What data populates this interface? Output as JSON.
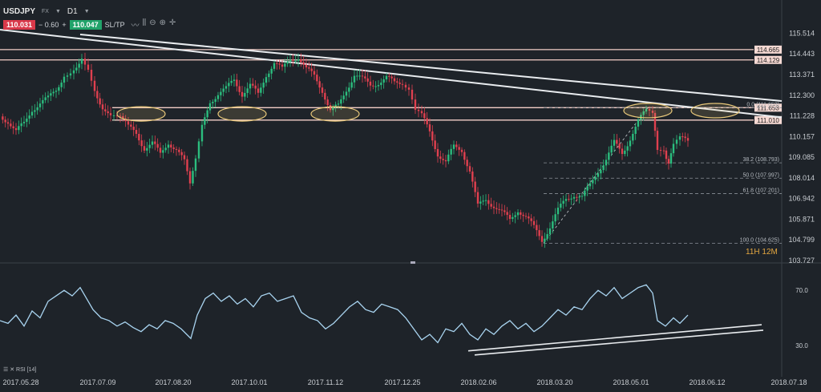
{
  "header": {
    "symbol": "USDJPY",
    "market": "FX",
    "timeframe": "D1",
    "bid": "110.031",
    "change": "− 0.60",
    "plus": "+",
    "ask": "110.047",
    "sltp": "SL/TP"
  },
  "colors": {
    "up": "#2bbd7e",
    "down": "#e0404f",
    "background": "#1e2329",
    "rsi_line": "#a9d4f0",
    "zone": "#e8c87a",
    "level": "#f3cfc8"
  },
  "chart_data": {
    "type": "candlestick",
    "ylim": [
      103.727,
      115.574
    ],
    "y_ticks": [
      "115.514",
      "114.443",
      "113.371",
      "112.300",
      "111.228",
      "110.157",
      "109.085",
      "108.014",
      "106.942",
      "105.871",
      "104.799",
      "103.727"
    ],
    "x_ticks": [
      "2017.05.28",
      "2017.07.09",
      "2017.08.20",
      "2017.10.01",
      "2017.11.12",
      "2017.12.25",
      "2018.02.06",
      "2018.03.20",
      "2018.05.01",
      "2018.06.12",
      "2018.07.18"
    ],
    "price_path": [
      [
        0,
        111.2
      ],
      [
        10,
        111.0
      ],
      [
        20,
        110.4
      ],
      [
        30,
        110.8
      ],
      [
        40,
        111.6
      ],
      [
        50,
        111.9
      ],
      [
        60,
        112.1
      ],
      [
        70,
        112.6
      ],
      [
        80,
        113.4
      ],
      [
        92,
        113.7
      ],
      [
        102,
        114.3
      ],
      [
        110,
        113.8
      ],
      [
        118,
        112.6
      ],
      [
        128,
        111.7
      ],
      [
        138,
        111.1
      ],
      [
        150,
        111.3
      ],
      [
        160,
        110.6
      ],
      [
        170,
        110.3
      ],
      [
        180,
        109.6
      ],
      [
        190,
        109.8
      ],
      [
        200,
        109.2
      ],
      [
        210,
        109.9
      ],
      [
        220,
        109.5
      ],
      [
        230,
        108.8
      ],
      [
        237,
        107.6
      ],
      [
        244,
        109.0
      ],
      [
        252,
        110.6
      ],
      [
        262,
        112.0
      ],
      [
        272,
        112.4
      ],
      [
        282,
        112.6
      ],
      [
        292,
        113.1
      ],
      [
        302,
        112.4
      ],
      [
        312,
        112.8
      ],
      [
        322,
        112.3
      ],
      [
        332,
        113.4
      ],
      [
        342,
        114.0
      ],
      [
        352,
        113.6
      ],
      [
        362,
        114.2
      ],
      [
        372,
        114.3
      ],
      [
        382,
        113.6
      ],
      [
        392,
        113.3
      ],
      [
        402,
        112.6
      ],
      [
        412,
        111.5
      ],
      [
        422,
        111.7
      ],
      [
        432,
        112.6
      ],
      [
        442,
        113.4
      ],
      [
        452,
        113.1
      ],
      [
        462,
        112.8
      ],
      [
        472,
        113.0
      ],
      [
        482,
        113.2
      ],
      [
        492,
        112.9
      ],
      [
        502,
        113.0
      ],
      [
        510,
        112.6
      ],
      [
        518,
        111.4
      ],
      [
        526,
        111.2
      ],
      [
        536,
        110.4
      ],
      [
        546,
        109.3
      ],
      [
        556,
        108.8
      ],
      [
        566,
        109.6
      ],
      [
        576,
        109.5
      ],
      [
        586,
        108.4
      ],
      [
        596,
        106.5
      ],
      [
        606,
        106.9
      ],
      [
        616,
        106.6
      ],
      [
        626,
        106.2
      ],
      [
        636,
        105.8
      ],
      [
        646,
        106.4
      ],
      [
        656,
        106.0
      ],
      [
        666,
        105.4
      ],
      [
        676,
        104.8
      ],
      [
        686,
        105.5
      ],
      [
        696,
        106.3
      ],
      [
        706,
        106.9
      ],
      [
        716,
        107.2
      ],
      [
        726,
        107.0
      ],
      [
        736,
        107.6
      ],
      [
        746,
        108.4
      ],
      [
        756,
        109.0
      ],
      [
        766,
        109.8
      ],
      [
        776,
        109.3
      ],
      [
        786,
        110.1
      ],
      [
        796,
        110.9
      ],
      [
        806,
        111.5
      ],
      [
        814,
        111.2
      ],
      [
        820,
        109.6
      ],
      [
        828,
        109.4
      ],
      [
        834,
        108.9
      ],
      [
        840,
        109.6
      ],
      [
        848,
        110.1
      ],
      [
        858,
        109.8
      ]
    ],
    "levels": [
      {
        "label": "114.665",
        "value": 114.665
      },
      {
        "label": "114.129",
        "value": 114.129
      },
      {
        "label": "111.653",
        "value": 111.653
      },
      {
        "label": "111.010",
        "value": 111.01
      }
    ],
    "fibonacci": [
      {
        "label": "0.0 (111.653)",
        "value": 111.653
      },
      {
        "label": "38.2 (108.793)",
        "value": 108.793
      },
      {
        "label": "50.0 (107.997)",
        "value": 107.997
      },
      {
        "label": "61.8 (107.201)",
        "value": 107.201
      },
      {
        "label": "100.0 (104.625)",
        "value": 104.625
      }
    ],
    "rsi": {
      "label": "RSI (14)",
      "ylim": [
        20,
        80
      ],
      "ticks": [
        "70.0",
        "30.0"
      ],
      "path": [
        [
          0,
          48
        ],
        [
          10,
          46
        ],
        [
          20,
          52
        ],
        [
          30,
          44
        ],
        [
          40,
          55
        ],
        [
          50,
          50
        ],
        [
          60,
          62
        ],
        [
          70,
          66
        ],
        [
          80,
          70
        ],
        [
          90,
          66
        ],
        [
          100,
          72
        ],
        [
          108,
          64
        ],
        [
          116,
          56
        ],
        [
          126,
          50
        ],
        [
          136,
          48
        ],
        [
          146,
          44
        ],
        [
          156,
          47
        ],
        [
          166,
          43
        ],
        [
          176,
          40
        ],
        [
          186,
          45
        ],
        [
          196,
          42
        ],
        [
          206,
          48
        ],
        [
          216,
          46
        ],
        [
          226,
          42
        ],
        [
          238,
          35
        ],
        [
          246,
          52
        ],
        [
          256,
          64
        ],
        [
          266,
          68
        ],
        [
          276,
          62
        ],
        [
          286,
          66
        ],
        [
          296,
          60
        ],
        [
          306,
          64
        ],
        [
          316,
          58
        ],
        [
          326,
          66
        ],
        [
          336,
          68
        ],
        [
          346,
          62
        ],
        [
          356,
          64
        ],
        [
          366,
          66
        ],
        [
          376,
          54
        ],
        [
          386,
          50
        ],
        [
          396,
          48
        ],
        [
          406,
          42
        ],
        [
          416,
          46
        ],
        [
          426,
          52
        ],
        [
          436,
          58
        ],
        [
          446,
          62
        ],
        [
          456,
          56
        ],
        [
          466,
          54
        ],
        [
          476,
          60
        ],
        [
          486,
          58
        ],
        [
          496,
          56
        ],
        [
          506,
          50
        ],
        [
          516,
          42
        ],
        [
          526,
          34
        ],
        [
          536,
          38
        ],
        [
          546,
          32
        ],
        [
          556,
          42
        ],
        [
          566,
          40
        ],
        [
          576,
          46
        ],
        [
          586,
          38
        ],
        [
          596,
          34
        ],
        [
          606,
          42
        ],
        [
          616,
          38
        ],
        [
          626,
          44
        ],
        [
          636,
          48
        ],
        [
          646,
          42
        ],
        [
          656,
          46
        ],
        [
          666,
          40
        ],
        [
          676,
          44
        ],
        [
          686,
          50
        ],
        [
          696,
          56
        ],
        [
          706,
          52
        ],
        [
          716,
          58
        ],
        [
          726,
          56
        ],
        [
          736,
          64
        ],
        [
          746,
          70
        ],
        [
          756,
          66
        ],
        [
          766,
          72
        ],
        [
          776,
          64
        ],
        [
          786,
          68
        ],
        [
          796,
          72
        ],
        [
          806,
          74
        ],
        [
          814,
          68
        ],
        [
          820,
          48
        ],
        [
          830,
          44
        ],
        [
          840,
          50
        ],
        [
          848,
          46
        ],
        [
          858,
          52
        ]
      ]
    }
  },
  "overlay": {
    "rsi_label": "☰ ✕ RSI [14]",
    "tf_h": "11H",
    "tf_m": "12M",
    "rsi_tick_high": "70.0",
    "rsi_tick_low": "30.0"
  }
}
